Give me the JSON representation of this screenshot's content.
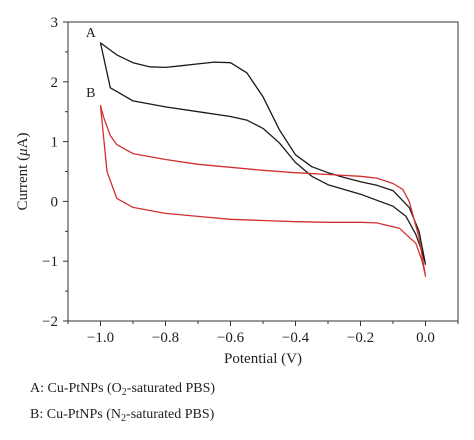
{
  "chart_data": {
    "type": "line",
    "xlabel": "Potential (V)",
    "ylabel_pre": "Current (",
    "ylabel_mu": "μ",
    "ylabel_post": "A)",
    "xlim": [
      -1.1,
      0.1
    ],
    "ylim": [
      -2,
      3
    ],
    "x_ticks": [
      -1.0,
      -0.8,
      -0.6,
      -0.4,
      -0.2,
      0.0
    ],
    "x_tick_labels": [
      "−1.0",
      "−0.8",
      "−0.6",
      "−0.4",
      "−0.2",
      "0.0"
    ],
    "y_ticks": [
      -2,
      -1,
      0,
      1,
      2,
      3
    ],
    "y_tick_labels": [
      "−2",
      "−1",
      "0",
      "1",
      "2",
      "3"
    ],
    "series": [
      {
        "name": "A",
        "color": "#1a1a1a",
        "points": [
          [
            -1.0,
            2.65
          ],
          [
            -0.95,
            2.45
          ],
          [
            -0.9,
            2.32
          ],
          [
            -0.85,
            2.25
          ],
          [
            -0.8,
            2.24
          ],
          [
            -0.75,
            2.27
          ],
          [
            -0.7,
            2.3
          ],
          [
            -0.65,
            2.33
          ],
          [
            -0.6,
            2.32
          ],
          [
            -0.55,
            2.15
          ],
          [
            -0.5,
            1.75
          ],
          [
            -0.45,
            1.2
          ],
          [
            -0.4,
            0.78
          ],
          [
            -0.35,
            0.58
          ],
          [
            -0.3,
            0.48
          ],
          [
            -0.25,
            0.4
          ],
          [
            -0.2,
            0.33
          ],
          [
            -0.15,
            0.27
          ],
          [
            -0.1,
            0.18
          ],
          [
            -0.05,
            -0.1
          ],
          [
            -0.02,
            -0.5
          ],
          [
            0.0,
            -1.05
          ],
          [
            -0.01,
            -0.85
          ],
          [
            -0.03,
            -0.55
          ],
          [
            -0.06,
            -0.25
          ],
          [
            -0.1,
            -0.08
          ],
          [
            -0.2,
            0.12
          ],
          [
            -0.3,
            0.28
          ],
          [
            -0.35,
            0.42
          ],
          [
            -0.4,
            0.65
          ],
          [
            -0.45,
            0.98
          ],
          [
            -0.5,
            1.22
          ],
          [
            -0.55,
            1.36
          ],
          [
            -0.6,
            1.42
          ],
          [
            -0.7,
            1.5
          ],
          [
            -0.8,
            1.58
          ],
          [
            -0.9,
            1.68
          ],
          [
            -0.97,
            1.9
          ],
          [
            -1.0,
            2.65
          ]
        ]
      },
      {
        "name": "B",
        "color": "#d23030",
        "points": [
          [
            -1.0,
            1.6
          ],
          [
            -0.99,
            1.4
          ],
          [
            -0.97,
            1.1
          ],
          [
            -0.95,
            0.95
          ],
          [
            -0.9,
            0.8
          ],
          [
            -0.8,
            0.7
          ],
          [
            -0.7,
            0.62
          ],
          [
            -0.6,
            0.57
          ],
          [
            -0.5,
            0.52
          ],
          [
            -0.4,
            0.48
          ],
          [
            -0.3,
            0.45
          ],
          [
            -0.2,
            0.42
          ],
          [
            -0.15,
            0.39
          ],
          [
            -0.1,
            0.3
          ],
          [
            -0.07,
            0.2
          ],
          [
            -0.05,
            0.0
          ],
          [
            -0.02,
            -0.6
          ],
          [
            0.0,
            -1.25
          ],
          [
            -0.01,
            -1.0
          ],
          [
            -0.03,
            -0.7
          ],
          [
            -0.08,
            -0.45
          ],
          [
            -0.15,
            -0.36
          ],
          [
            -0.2,
            -0.35
          ],
          [
            -0.3,
            -0.35
          ],
          [
            -0.4,
            -0.34
          ],
          [
            -0.5,
            -0.32
          ],
          [
            -0.6,
            -0.3
          ],
          [
            -0.7,
            -0.25
          ],
          [
            -0.8,
            -0.2
          ],
          [
            -0.9,
            -0.1
          ],
          [
            -0.95,
            0.05
          ],
          [
            -0.98,
            0.5
          ],
          [
            -1.0,
            1.6
          ]
        ]
      }
    ],
    "annotations": [
      {
        "text": "A",
        "x": -1.03,
        "y": 2.75
      },
      {
        "text": "B",
        "x": -1.03,
        "y": 1.75
      }
    ],
    "legend": {
      "placement": "bottom",
      "entries": [
        {
          "pre": "A: Cu-PtNPs (O",
          "sub": "2",
          "post": "-saturated PBS)"
        },
        {
          "pre": "B: Cu-PtNPs (N",
          "sub": "2",
          "post": "-saturated PBS)"
        }
      ]
    }
  }
}
